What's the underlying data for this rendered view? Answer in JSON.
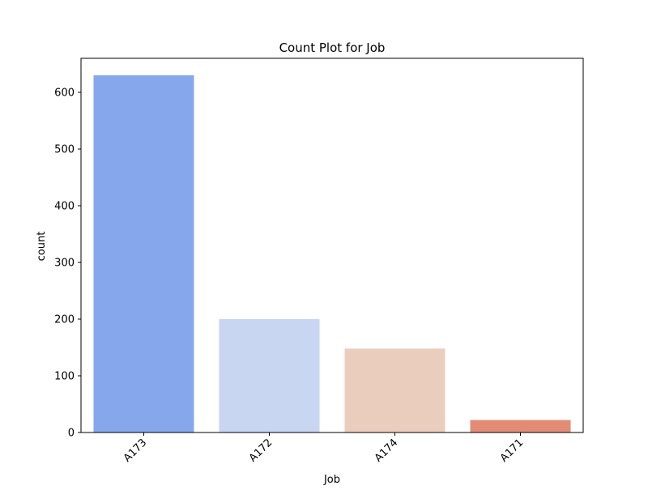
{
  "chart_data": {
    "type": "bar",
    "title": "Count Plot for Job",
    "xlabel": "Job",
    "ylabel": "count",
    "categories": [
      "A173",
      "A172",
      "A174",
      "A171"
    ],
    "values": [
      630,
      200,
      148,
      22
    ],
    "colors": [
      "#87a7ec",
      "#c8d6f1",
      "#ebcdbe",
      "#e28c75"
    ],
    "ylim": [
      0,
      660
    ],
    "yticks": [
      0,
      100,
      200,
      300,
      400,
      500,
      600
    ],
    "grid": false,
    "legend": "none"
  }
}
